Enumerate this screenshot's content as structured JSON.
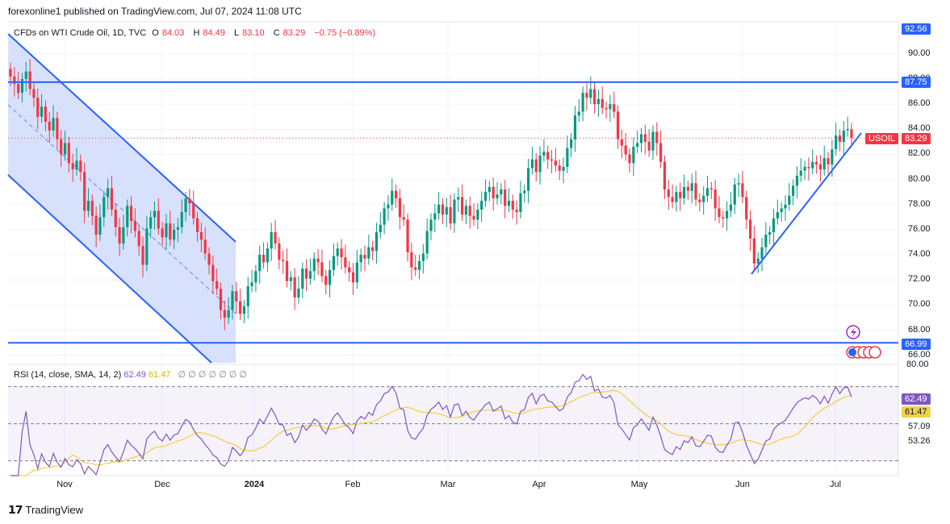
{
  "header": {
    "publish_text": "forexonline1 published on TradingView.com, Jul 07, 2024 11:08 UTC"
  },
  "legend": {
    "symbol": "CFDs on WTI Crude Oil, 1D, TVC",
    "o_label": "O",
    "o_value": "84.03",
    "h_label": "H",
    "h_value": "84.49",
    "l_label": "L",
    "l_value": "83.10",
    "c_label": "C",
    "c_value": "83.29",
    "change": "−0.75 (−0.89%)"
  },
  "rsi_legend": {
    "label": "RSI (14, close, SMA, 14, 2)",
    "rsi_value": "62.49",
    "sma_value": "61.47",
    "eyes": "∅ ∅ ∅ ∅ ∅ ∅ ∅"
  },
  "price_axis": {
    "ticks": [
      "90.00",
      "88.00",
      "86.00",
      "84.00",
      "82.00",
      "80.00",
      "78.00",
      "76.00",
      "74.00",
      "72.00",
      "70.00",
      "68.00",
      "66.00"
    ],
    "top_label": "92.56",
    "resistance_label": "87.75",
    "support_label": "66.99",
    "current_symbol": "USOIL",
    "current_price": "83.29"
  },
  "rsi_axis": {
    "top": "80.00",
    "rsi": "62.49",
    "sma": "61.47",
    "t1": "57.09",
    "t2": "53.26"
  },
  "time_axis": [
    "Nov",
    "Dec",
    "2024",
    "Feb",
    "Mar",
    "Apr",
    "May",
    "Jun",
    "Jul"
  ],
  "footer": {
    "brand": "TradingView"
  },
  "colors": {
    "up": "#089981",
    "down": "#f23645",
    "line": "#2962ff",
    "rsi": "#7e57c2",
    "rsi_sma": "#f2d24c",
    "channel_fill": "#d1dcfb"
  },
  "chart_data": {
    "type": "candlestick",
    "title": "CFDs on WTI Crude Oil, 1D, TVC",
    "y_range": [
      65.4,
      92.56
    ],
    "horizontal_levels": [
      87.75,
      66.99
    ],
    "last_price": 83.29,
    "closes": [
      88.2,
      87.6,
      86.9,
      88.0,
      88.6,
      87.2,
      86.5,
      85.0,
      85.8,
      84.6,
      83.9,
      84.9,
      83.2,
      82.0,
      82.9,
      81.3,
      80.8,
      81.5,
      80.6,
      77.5,
      78.3,
      77.1,
      75.6,
      77.0,
      78.6,
      79.3,
      77.6,
      76.2,
      74.9,
      76.2,
      77.9,
      76.7,
      75.9,
      74.7,
      73.2,
      76.1,
      77.0,
      77.5,
      76.1,
      75.4,
      76.5,
      75.2,
      76.0,
      76.2,
      77.4,
      78.5,
      78.1,
      76.9,
      75.8,
      75.2,
      74.1,
      73.2,
      71.9,
      71.3,
      69.6,
      69.0,
      69.6,
      71.1,
      70.3,
      69.3,
      69.9,
      71.5,
      71.8,
      72.7,
      74.0,
      73.4,
      74.5,
      75.8,
      74.9,
      73.6,
      73.5,
      71.9,
      72.2,
      70.6,
      71.3,
      72.9,
      72.1,
      72.7,
      73.7,
      73.4,
      72.3,
      71.6,
      72.8,
      73.9,
      74.5,
      73.8,
      73.0,
      72.6,
      71.8,
      73.4,
      74.0,
      73.7,
      74.6,
      74.3,
      75.8,
      76.4,
      77.7,
      78.0,
      79.1,
      78.5,
      77.0,
      76.8,
      74.2,
      73.0,
      72.8,
      73.5,
      74.1,
      75.9,
      76.8,
      77.3,
      78.0,
      77.2,
      77.8,
      76.5,
      78.4,
      78.6,
      77.2,
      77.9,
      77.1,
      76.8,
      77.6,
      78.3,
      79.0,
      79.4,
      78.5,
      78.8,
      79.2,
      77.9,
      78.3,
      77.6,
      77.4,
      78.9,
      79.1,
      80.9,
      81.6,
      80.6,
      81.9,
      82.2,
      81.6,
      81.5,
      81.1,
      80.7,
      81.0,
      82.5,
      83.2,
      85.1,
      85.4,
      86.9,
      86.5,
      87.2,
      86.0,
      86.4,
      85.7,
      85.6,
      86.0,
      85.4,
      83.2,
      82.7,
      82.0,
      81.3,
      82.6,
      82.9,
      83.6,
      83.0,
      82.3,
      83.8,
      82.9,
      81.4,
      79.2,
      78.6,
      78.2,
      79.0,
      78.5,
      79.4,
      79.1,
      79.7,
      78.4,
      78.2,
      78.7,
      79.3,
      79.2,
      77.7,
      77.0,
      76.9,
      77.5,
      78.0,
      79.6,
      79.7,
      78.6,
      76.8,
      75.3,
      73.3,
      73.7,
      74.6,
      75.6,
      75.8,
      76.9,
      77.4,
      77.7,
      78.0,
      78.7,
      79.5,
      80.3,
      80.7,
      81.0,
      80.9,
      81.4,
      81.2,
      80.8,
      81.7,
      81.2,
      82.4,
      83.5,
      83.0,
      83.9,
      84.0,
      83.3
    ],
    "rsi_series": {
      "rsi": "RSI(14)",
      "sma": "SMA(14)",
      "last_rsi": 62.49,
      "last_sma": 61.47,
      "levels": [
        70,
        50,
        30
      ]
    },
    "annotations": [
      "descending channel Oct–Dec 2023",
      "ascending support line from Jun 2024 low",
      "horizontal resistance 87.75",
      "horizontal support 66.99"
    ]
  }
}
